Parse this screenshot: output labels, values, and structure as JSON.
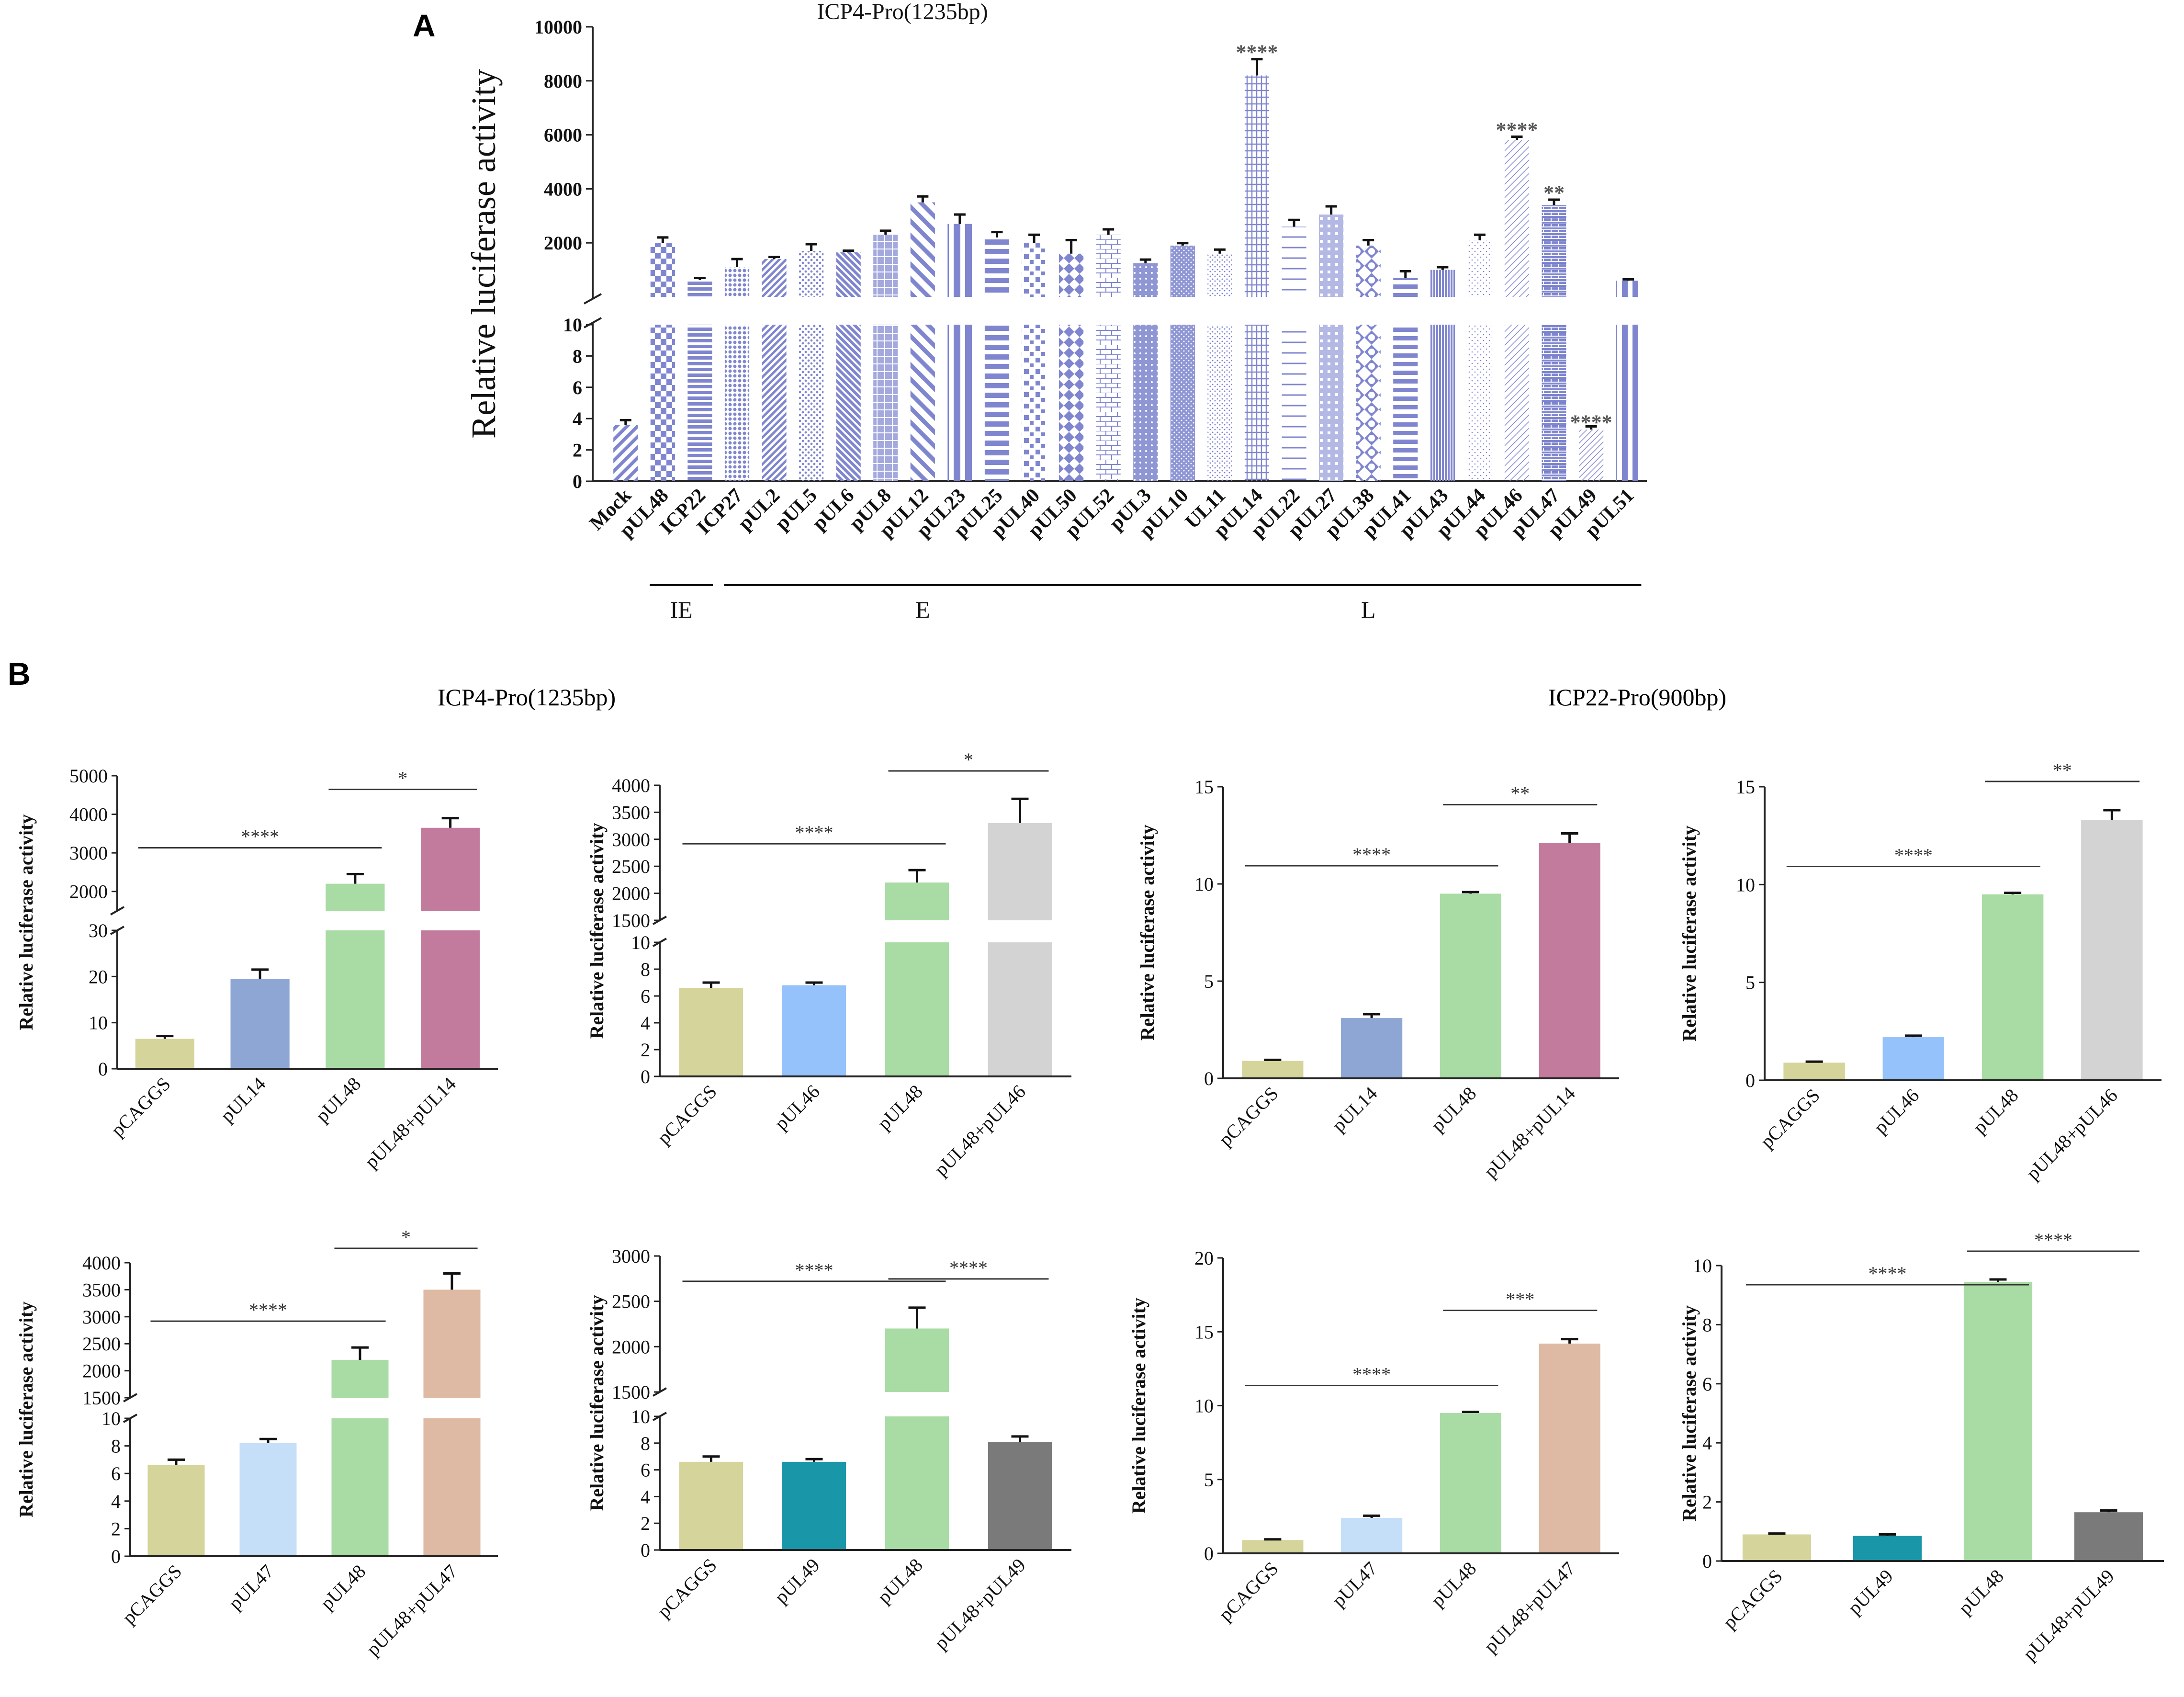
{
  "panel_labels": {
    "a": "A",
    "b": "B"
  },
  "colors": {
    "panel_a_bar": "#7f86cf",
    "pCAGGS": "#d5d49a",
    "pUL14": "#8da6d3",
    "pUL46": "#95c2fb",
    "pUL47": "#c6dff8",
    "pUL49": "#1a96a9",
    "pUL48": "#a9dca4",
    "pUL48+pUL14": "#c27b9d",
    "pUL48+pUL46": "#d3d3d3",
    "pUL48+pUL47": "#deb9a3",
    "pUL48+pUL49": "#7a7a7a"
  },
  "section_titles": {
    "b_left": "ICP4-Pro(1235bp)",
    "b_right": "ICP22-Pro(900bp)"
  },
  "chart_data": [
    {
      "id": "A",
      "type": "bar",
      "title": "ICP4-Pro(1235bp)",
      "ylabel": "Relative luciferase activity",
      "xlabel": "",
      "axis_break": {
        "lower": [
          0,
          10
        ],
        "upper": [
          0,
          10000
        ]
      },
      "lower_ticks": [
        "0",
        "2",
        "4",
        "6",
        "8",
        "10"
      ],
      "upper_ticks": [
        "2000",
        "4000",
        "6000",
        "8000",
        "10000"
      ],
      "categories": [
        "Mock",
        "pUL48",
        "ICP22",
        "ICP27",
        "pUL2",
        "pUL5",
        "pUL6",
        "pUL8",
        "pUL12",
        "pUL23",
        "pUL25",
        "pUL40",
        "pUL50",
        "pUL52",
        "pUL3",
        "pUL10",
        "UL11",
        "pUL14",
        "pUL22",
        "pUL27",
        "pUL38",
        "pUL41",
        "pUL43",
        "pUL44",
        "pUL46",
        "pUL47",
        "pUL49",
        "pUL51"
      ],
      "values": [
        3.6,
        2000,
        620,
        1100,
        1400,
        1700,
        1650,
        2300,
        3500,
        2700,
        2200,
        2000,
        1600,
        2300,
        1250,
        1900,
        1600,
        8200,
        2600,
        3050,
        1900,
        700,
        1000,
        2100,
        5800,
        3400,
        3.3,
        600
      ],
      "errors": [
        0.3,
        200,
        80,
        300,
        80,
        250,
        60,
        150,
        220,
        350,
        200,
        300,
        500,
        200,
        130,
        90,
        150,
        600,
        250,
        300,
        200,
        250,
        100,
        200,
        130,
        200,
        0.2,
        50
      ],
      "annotations": [
        {
          "category": "pUL14",
          "text": "****"
        },
        {
          "category": "pUL46",
          "text": "****"
        },
        {
          "category": "pUL47",
          "text": "**"
        },
        {
          "category": "pUL49",
          "text": "****"
        }
      ],
      "groups": [
        {
          "label": "IE",
          "from": "pUL48",
          "to": "ICP22"
        },
        {
          "label": "E",
          "from": "ICP27",
          "to": "pUL52"
        },
        {
          "label": "L",
          "from": "pUL52",
          "to": "pUL51"
        }
      ]
    },
    {
      "id": "B1",
      "type": "bar",
      "title": "",
      "ylabel": "Relative luciferase activity",
      "categories": [
        "pCAGGS",
        "pUL14",
        "pUL48",
        "pUL48+pUL14"
      ],
      "values": [
        6.5,
        19.5,
        2200,
        3650
      ],
      "errors": [
        0.6,
        2,
        250,
        250
      ],
      "axis_break": {
        "lower": [
          0,
          30
        ],
        "upper": [
          1500,
          5000
        ]
      },
      "lower_ticks": [
        "0",
        "10",
        "20",
        "30"
      ],
      "upper_ticks": [
        "2000",
        "3000",
        "4000",
        "5000"
      ],
      "significance": [
        {
          "from": 0,
          "to": 2,
          "text": "****"
        },
        {
          "from": 2,
          "to": 3,
          "text": "*"
        }
      ]
    },
    {
      "id": "B2",
      "type": "bar",
      "title": "",
      "ylabel": "Relative luciferase activity",
      "categories": [
        "pCAGGS",
        "pUL46",
        "pUL48",
        "pUL48+pUL46"
      ],
      "values": [
        6.6,
        6.8,
        2200,
        3300
      ],
      "errors": [
        0.4,
        0.2,
        230,
        450
      ],
      "axis_break": {
        "lower": [
          0,
          10
        ],
        "upper": [
          1500,
          4000
        ]
      },
      "lower_ticks": [
        "0",
        "2",
        "4",
        "6",
        "8",
        "10"
      ],
      "upper_ticks": [
        "1500",
        "2000",
        "2500",
        "3000",
        "3500",
        "4000"
      ],
      "significance": [
        {
          "from": 0,
          "to": 2,
          "text": "****"
        },
        {
          "from": 2,
          "to": 3,
          "text": "*"
        }
      ]
    },
    {
      "id": "B3",
      "type": "bar",
      "title": "",
      "ylabel": "Relative luciferase activity",
      "categories": [
        "pCAGGS",
        "pUL14",
        "pUL48",
        "pUL48+pUL14"
      ],
      "values": [
        0.9,
        3.1,
        9.5,
        12.1
      ],
      "errors": [
        0.05,
        0.2,
        0.08,
        0.5
      ],
      "ylim": [
        0,
        15
      ],
      "ticks": [
        "0",
        "5",
        "10",
        "15"
      ],
      "significance": [
        {
          "from": 0,
          "to": 2,
          "text": "****"
        },
        {
          "from": 2,
          "to": 3,
          "text": "**"
        }
      ]
    },
    {
      "id": "B4",
      "type": "bar",
      "title": "",
      "ylabel": "Relative luciferase activity",
      "categories": [
        "pCAGGS",
        "pUL46",
        "pUL48",
        "pUL48+pUL46"
      ],
      "values": [
        0.9,
        2.2,
        9.5,
        13.3
      ],
      "errors": [
        0.05,
        0.08,
        0.08,
        0.5
      ],
      "ylim": [
        0,
        15
      ],
      "ticks": [
        "0",
        "5",
        "10",
        "15"
      ],
      "significance": [
        {
          "from": 0,
          "to": 2,
          "text": "****"
        },
        {
          "from": 2,
          "to": 3,
          "text": "**"
        }
      ]
    },
    {
      "id": "B5",
      "type": "bar",
      "title": "",
      "ylabel": "Relative luciferase activity",
      "categories": [
        "pCAGGS",
        "pUL47",
        "pUL48",
        "pUL48+pUL47"
      ],
      "values": [
        6.6,
        8.2,
        2200,
        3500
      ],
      "errors": [
        0.4,
        0.3,
        230,
        300
      ],
      "axis_break": {
        "lower": [
          0,
          10
        ],
        "upper": [
          1500,
          4000
        ]
      },
      "lower_ticks": [
        "0",
        "2",
        "4",
        "6",
        "8",
        "10"
      ],
      "upper_ticks": [
        "1500",
        "2000",
        "2500",
        "3000",
        "3500",
        "4000"
      ],
      "significance": [
        {
          "from": 0,
          "to": 2,
          "text": "****"
        },
        {
          "from": 2,
          "to": 3,
          "text": "*"
        }
      ]
    },
    {
      "id": "B6",
      "type": "bar",
      "title": "",
      "ylabel": "Relative luciferase activity",
      "categories": [
        "pCAGGS",
        "pUL49",
        "pUL48",
        "pUL48+pUL49"
      ],
      "values": [
        6.6,
        6.6,
        2200,
        8.1
      ],
      "errors": [
        0.4,
        0.2,
        230,
        0.4
      ],
      "axis_break": {
        "lower": [
          0,
          10
        ],
        "upper": [
          1500,
          3000
        ]
      },
      "lower_ticks": [
        "0",
        "2",
        "4",
        "6",
        "8",
        "10"
      ],
      "upper_ticks": [
        "1500",
        "2000",
        "2500",
        "3000"
      ],
      "significance": [
        {
          "from": 0,
          "to": 2,
          "text": "****"
        },
        {
          "from": 2,
          "to": 3,
          "text": "****"
        }
      ]
    },
    {
      "id": "B7",
      "type": "bar",
      "title": "",
      "ylabel": "Relative luciferase activity",
      "categories": [
        "pCAGGS",
        "pUL47",
        "pUL48",
        "pUL48+pUL47"
      ],
      "values": [
        0.9,
        2.4,
        9.5,
        14.2
      ],
      "errors": [
        0.05,
        0.15,
        0.08,
        0.3
      ],
      "ylim": [
        0,
        20
      ],
      "ticks": [
        "0",
        "5",
        "10",
        "15",
        "20"
      ],
      "significance": [
        {
          "from": 0,
          "to": 2,
          "text": "****"
        },
        {
          "from": 2,
          "to": 3,
          "text": "***"
        }
      ]
    },
    {
      "id": "B8",
      "type": "bar",
      "title": "",
      "ylabel": "Relative luciferase activity",
      "categories": [
        "pCAGGS",
        "pUL49",
        "pUL48",
        "pUL48+pUL49"
      ],
      "values": [
        0.9,
        0.85,
        9.45,
        1.65
      ],
      "errors": [
        0.03,
        0.05,
        0.08,
        0.06
      ],
      "ylim": [
        0,
        10
      ],
      "ticks": [
        "0",
        "2",
        "4",
        "6",
        "8",
        "10"
      ],
      "significance": [
        {
          "from": 0,
          "to": 2,
          "text": "****"
        },
        {
          "from": 2,
          "to": 3,
          "text": "****"
        }
      ]
    }
  ]
}
